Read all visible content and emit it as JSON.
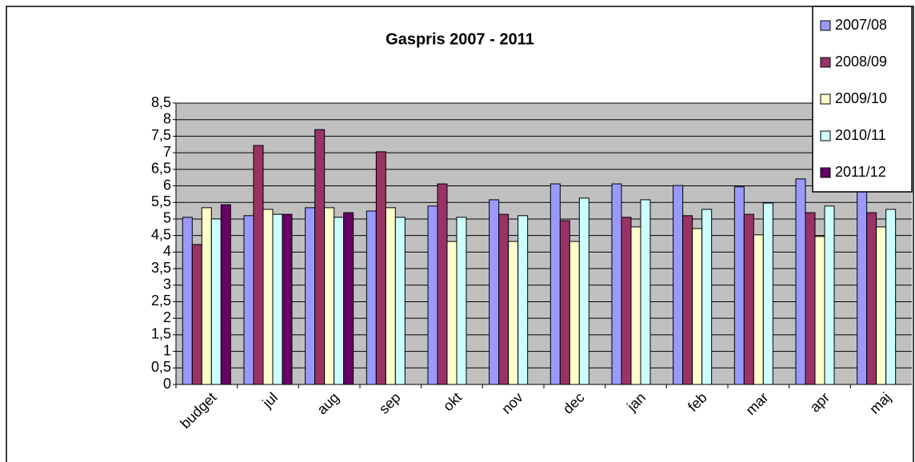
{
  "chart_data": {
    "type": "bar",
    "title": "Gaspris 2007 - 2011",
    "categories": [
      "budget",
      "jul",
      "aug",
      "sep",
      "okt",
      "nov",
      "dec",
      "jan",
      "feb",
      "mar",
      "apr",
      "maj"
    ],
    "series": [
      {
        "name": "2007/08",
        "color": "#9999ff",
        "values": [
          5.05,
          5.1,
          5.34,
          5.24,
          5.39,
          5.58,
          6.06,
          6.06,
          6.01,
          5.97,
          6.21,
          6.45
        ]
      },
      {
        "name": "2008/09",
        "color": "#993366",
        "values": [
          4.23,
          7.22,
          7.7,
          7.03,
          6.06,
          5.14,
          4.95,
          5.05,
          5.1,
          5.14,
          5.19,
          5.19
        ]
      },
      {
        "name": "2009/10",
        "color": "#ffffcc",
        "values": [
          5.34,
          5.29,
          5.34,
          5.34,
          4.32,
          4.32,
          4.32,
          4.76,
          4.71,
          4.52,
          4.47,
          4.76
        ]
      },
      {
        "name": "2010/11",
        "color": "#ccffff",
        "values": [
          5.0,
          5.14,
          5.05,
          5.05,
          5.05,
          5.1,
          5.63,
          5.58,
          5.29,
          5.48,
          5.39,
          5.29
        ]
      },
      {
        "name": "2011/12",
        "color": "#660066",
        "values": [
          5.43,
          5.14,
          5.19,
          null,
          null,
          null,
          null,
          null,
          null,
          null,
          null,
          null
        ]
      }
    ],
    "ylim": [
      0,
      8.5
    ],
    "yticks": [
      0,
      {
        "value": 0.5,
        "label": "0,5"
      },
      1,
      {
        "value": 1.5,
        "label": "1,5"
      },
      2,
      {
        "value": 2.5,
        "label": "2,5"
      },
      3,
      {
        "value": 3.5,
        "label": "3,5"
      },
      4,
      {
        "value": 4.5,
        "label": "4,5"
      },
      5,
      {
        "value": 5.5,
        "label": "5,5"
      },
      6,
      {
        "value": 6.5,
        "label": "6,5"
      },
      7,
      {
        "value": 7.5,
        "label": "7,5"
      },
      8,
      {
        "value": 8.5,
        "label": "8,5"
      }
    ],
    "grid": true,
    "legend": "top-right",
    "plot_background": "#c0c0c0"
  }
}
